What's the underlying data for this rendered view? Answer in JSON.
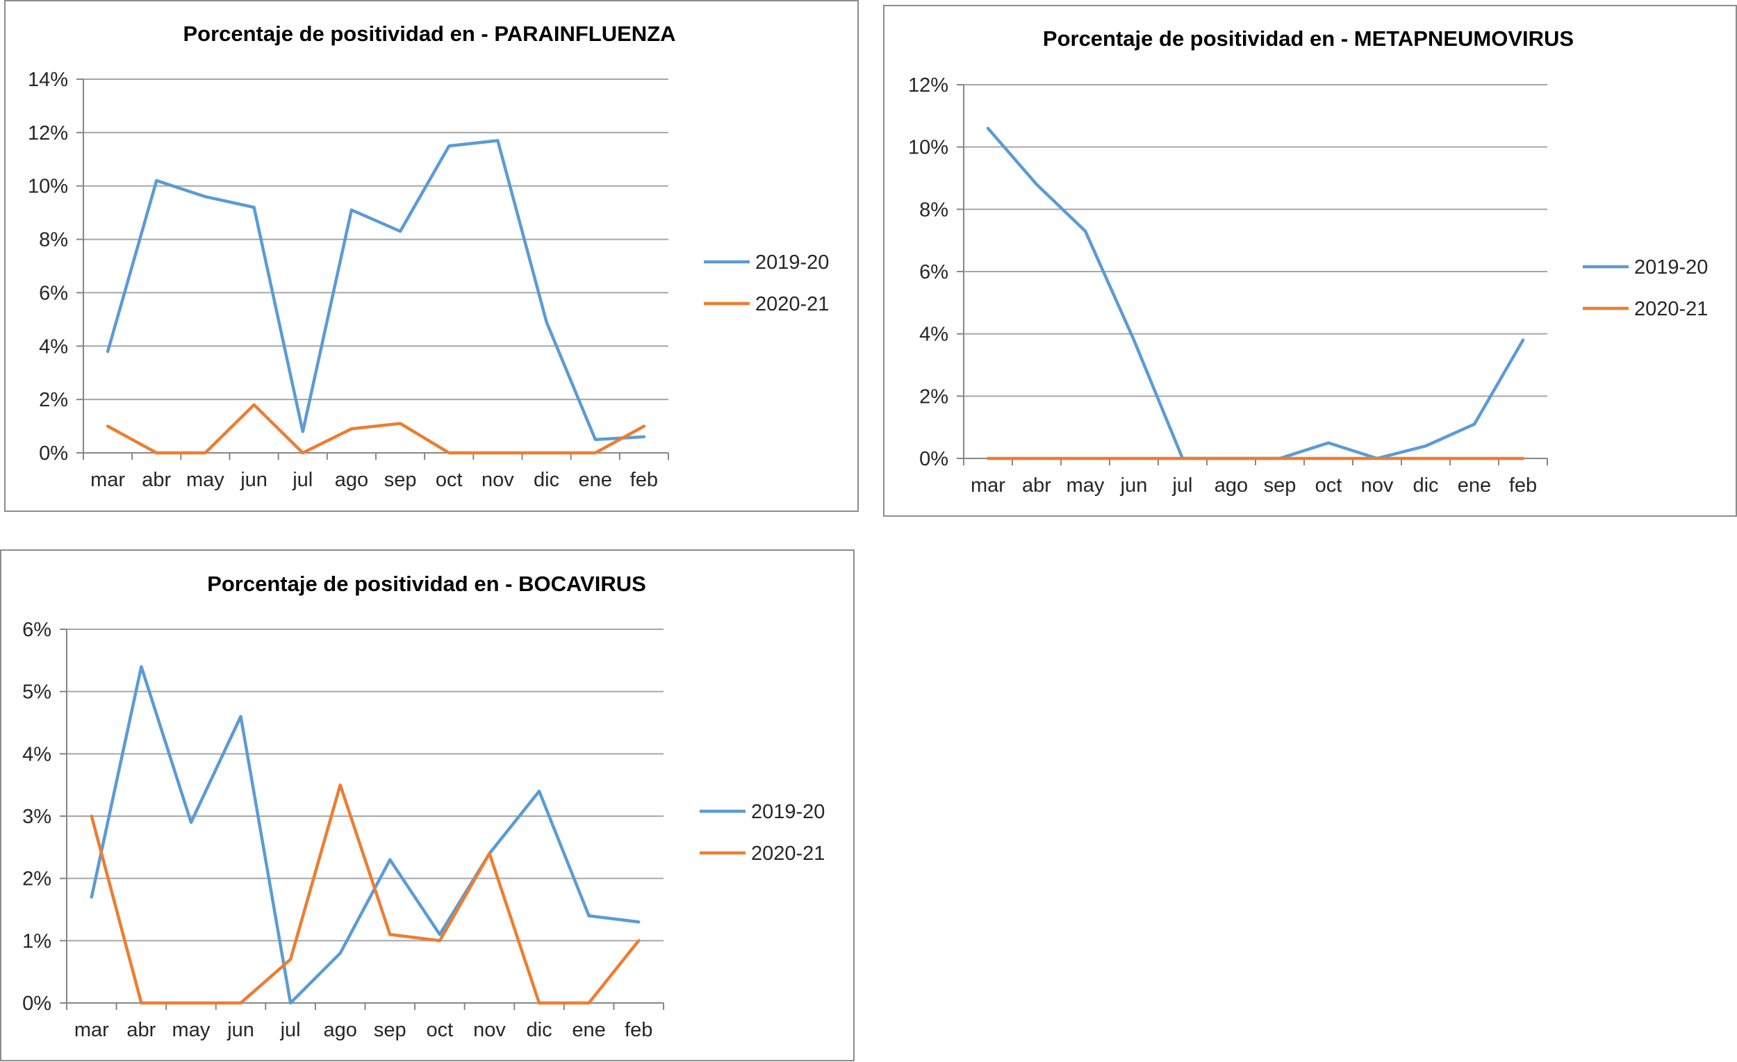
{
  "chart_data": [
    {
      "type": "line",
      "title": "Porcentaje de positividad en -  PARAINFLUENZA",
      "categories": [
        "mar",
        "abr",
        "may",
        "jun",
        "jul",
        "ago",
        "sep",
        "oct",
        "nov",
        "dic",
        "ene",
        "feb"
      ],
      "ylim": [
        0,
        14
      ],
      "yticks": [
        0,
        2,
        4,
        6,
        8,
        10,
        12,
        14
      ],
      "ytick_labels": [
        "0%",
        "2%",
        "4%",
        "6%",
        "8%",
        "10%",
        "12%",
        "14%"
      ],
      "grid": true,
      "legend": "right",
      "series": [
        {
          "name": "2019-20",
          "color": "#5b9bd5",
          "values": [
            3.8,
            10.2,
            9.6,
            9.2,
            0.8,
            9.1,
            8.3,
            11.5,
            11.7,
            4.9,
            0.5,
            0.6
          ]
        },
        {
          "name": "2020-21",
          "color": "#ed7d31",
          "values": [
            1.0,
            0.0,
            0.0,
            1.8,
            0.0,
            0.9,
            1.1,
            0.0,
            0.0,
            0.0,
            0.0,
            1.0
          ]
        }
      ]
    },
    {
      "type": "line",
      "title": "Porcentaje de positividad en -  METAPNEUMOVIRUS",
      "categories": [
        "mar",
        "abr",
        "may",
        "jun",
        "jul",
        "ago",
        "sep",
        "oct",
        "nov",
        "dic",
        "ene",
        "feb"
      ],
      "ylim": [
        0,
        12
      ],
      "yticks": [
        0,
        2,
        4,
        6,
        8,
        10,
        12
      ],
      "ytick_labels": [
        "0%",
        "2%",
        "4%",
        "6%",
        "8%",
        "10%",
        "12%"
      ],
      "grid": true,
      "legend": "right",
      "series": [
        {
          "name": "2019-20",
          "color": "#5b9bd5",
          "values": [
            10.6,
            8.8,
            7.3,
            3.8,
            0.0,
            0.0,
            0.0,
            0.5,
            0.0,
            0.4,
            1.1,
            3.8
          ]
        },
        {
          "name": "2020-21",
          "color": "#ed7d31",
          "values": [
            0,
            0,
            0,
            0,
            0,
            0,
            0,
            0,
            0,
            0,
            0,
            0
          ]
        }
      ]
    },
    {
      "type": "line",
      "title": "Porcentaje de positividad en -  BOCAVIRUS",
      "categories": [
        "mar",
        "abr",
        "may",
        "jun",
        "jul",
        "ago",
        "sep",
        "oct",
        "nov",
        "dic",
        "ene",
        "feb"
      ],
      "ylim": [
        0,
        6
      ],
      "yticks": [
        0,
        1,
        2,
        3,
        4,
        5,
        6
      ],
      "ytick_labels": [
        "0%",
        "1%",
        "2%",
        "3%",
        "4%",
        "5%",
        "6%"
      ],
      "grid": true,
      "legend": "right",
      "series": [
        {
          "name": "2019-20",
          "color": "#5b9bd5",
          "values": [
            1.7,
            5.4,
            2.9,
            4.6,
            0.0,
            0.8,
            2.3,
            1.1,
            2.4,
            3.4,
            1.4,
            1.3
          ]
        },
        {
          "name": "2020-21",
          "color": "#ed7d31",
          "values": [
            3.0,
            0.0,
            0.0,
            0.0,
            0.7,
            3.5,
            1.1,
            1.0,
            2.4,
            0.0,
            0.0,
            1.0
          ]
        }
      ]
    }
  ]
}
